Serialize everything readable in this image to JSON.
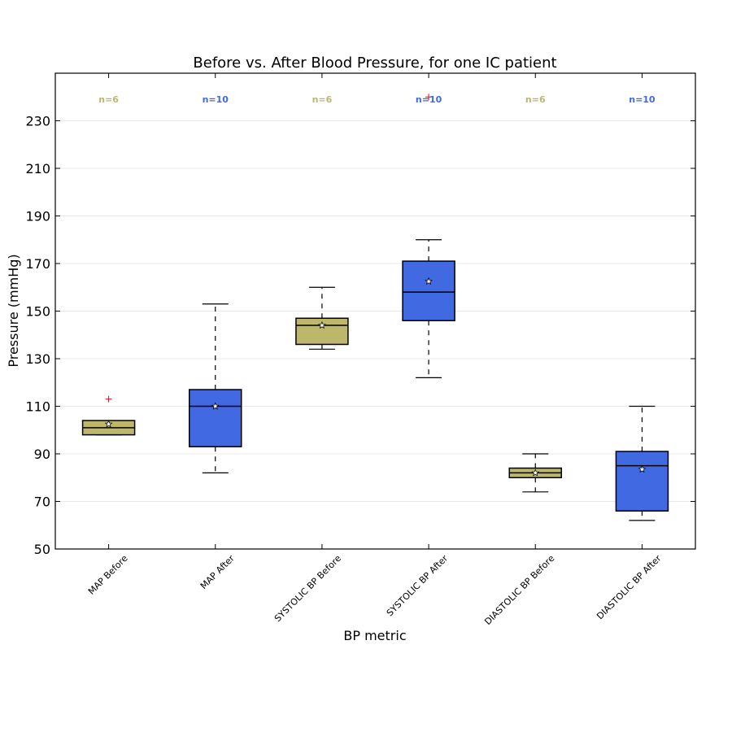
{
  "chart_data": {
    "type": "box",
    "title": "Before vs. After Blood Pressure, for one IC patient",
    "xlabel": "BP metric",
    "ylabel": "Pressure (mmHg)",
    "ylim": [
      50,
      250
    ],
    "yticks": [
      50,
      70,
      90,
      110,
      130,
      150,
      170,
      190,
      210,
      230
    ],
    "grid": "horizontal, light",
    "colors": {
      "before": "#BDB76B",
      "after": "#4169E1",
      "outlier": "#ff0000",
      "grid": "#e8e8e8"
    },
    "categories": [
      "MAP Before",
      "MAP After",
      "SYSTOLIC BP Before",
      "SYSTOLIC BP After",
      "DIASTOLIC BP Before",
      "DIASTOLIC BP After"
    ],
    "boxes": [
      {
        "label": "MAP Before",
        "group": "before",
        "whisker_low": 98,
        "q1": 98,
        "median": 101,
        "q3": 104,
        "whisker_high": 104,
        "mean": 102.5,
        "outliers": [
          113
        ],
        "n_label": "n=6"
      },
      {
        "label": "MAP After",
        "group": "after",
        "whisker_low": 82,
        "q1": 93,
        "median": 110,
        "q3": 117,
        "whisker_high": 153,
        "mean": 110,
        "outliers": [],
        "n_label": "n=10"
      },
      {
        "label": "SYSTOLIC BP Before",
        "group": "before",
        "whisker_low": 134,
        "q1": 136,
        "median": 144,
        "q3": 147,
        "whisker_high": 160,
        "mean": 144,
        "outliers": [],
        "n_label": "n=6"
      },
      {
        "label": "SYSTOLIC BP After",
        "group": "after",
        "whisker_low": 122,
        "q1": 146,
        "median": 158,
        "q3": 171,
        "whisker_high": 180,
        "mean": 162.5,
        "outliers": [
          240
        ],
        "n_label": "n=10"
      },
      {
        "label": "DIASTOLIC BP Before",
        "group": "before",
        "whisker_low": 74,
        "q1": 80,
        "median": 82,
        "q3": 84,
        "whisker_high": 90,
        "mean": 82,
        "outliers": [],
        "n_label": "n=6"
      },
      {
        "label": "DIASTOLIC BP After",
        "group": "after",
        "whisker_low": 62,
        "q1": 66,
        "median": 85,
        "q3": 91,
        "whisker_high": 110,
        "mean": 83.5,
        "outliers": [],
        "n_label": "n=10"
      }
    ]
  }
}
